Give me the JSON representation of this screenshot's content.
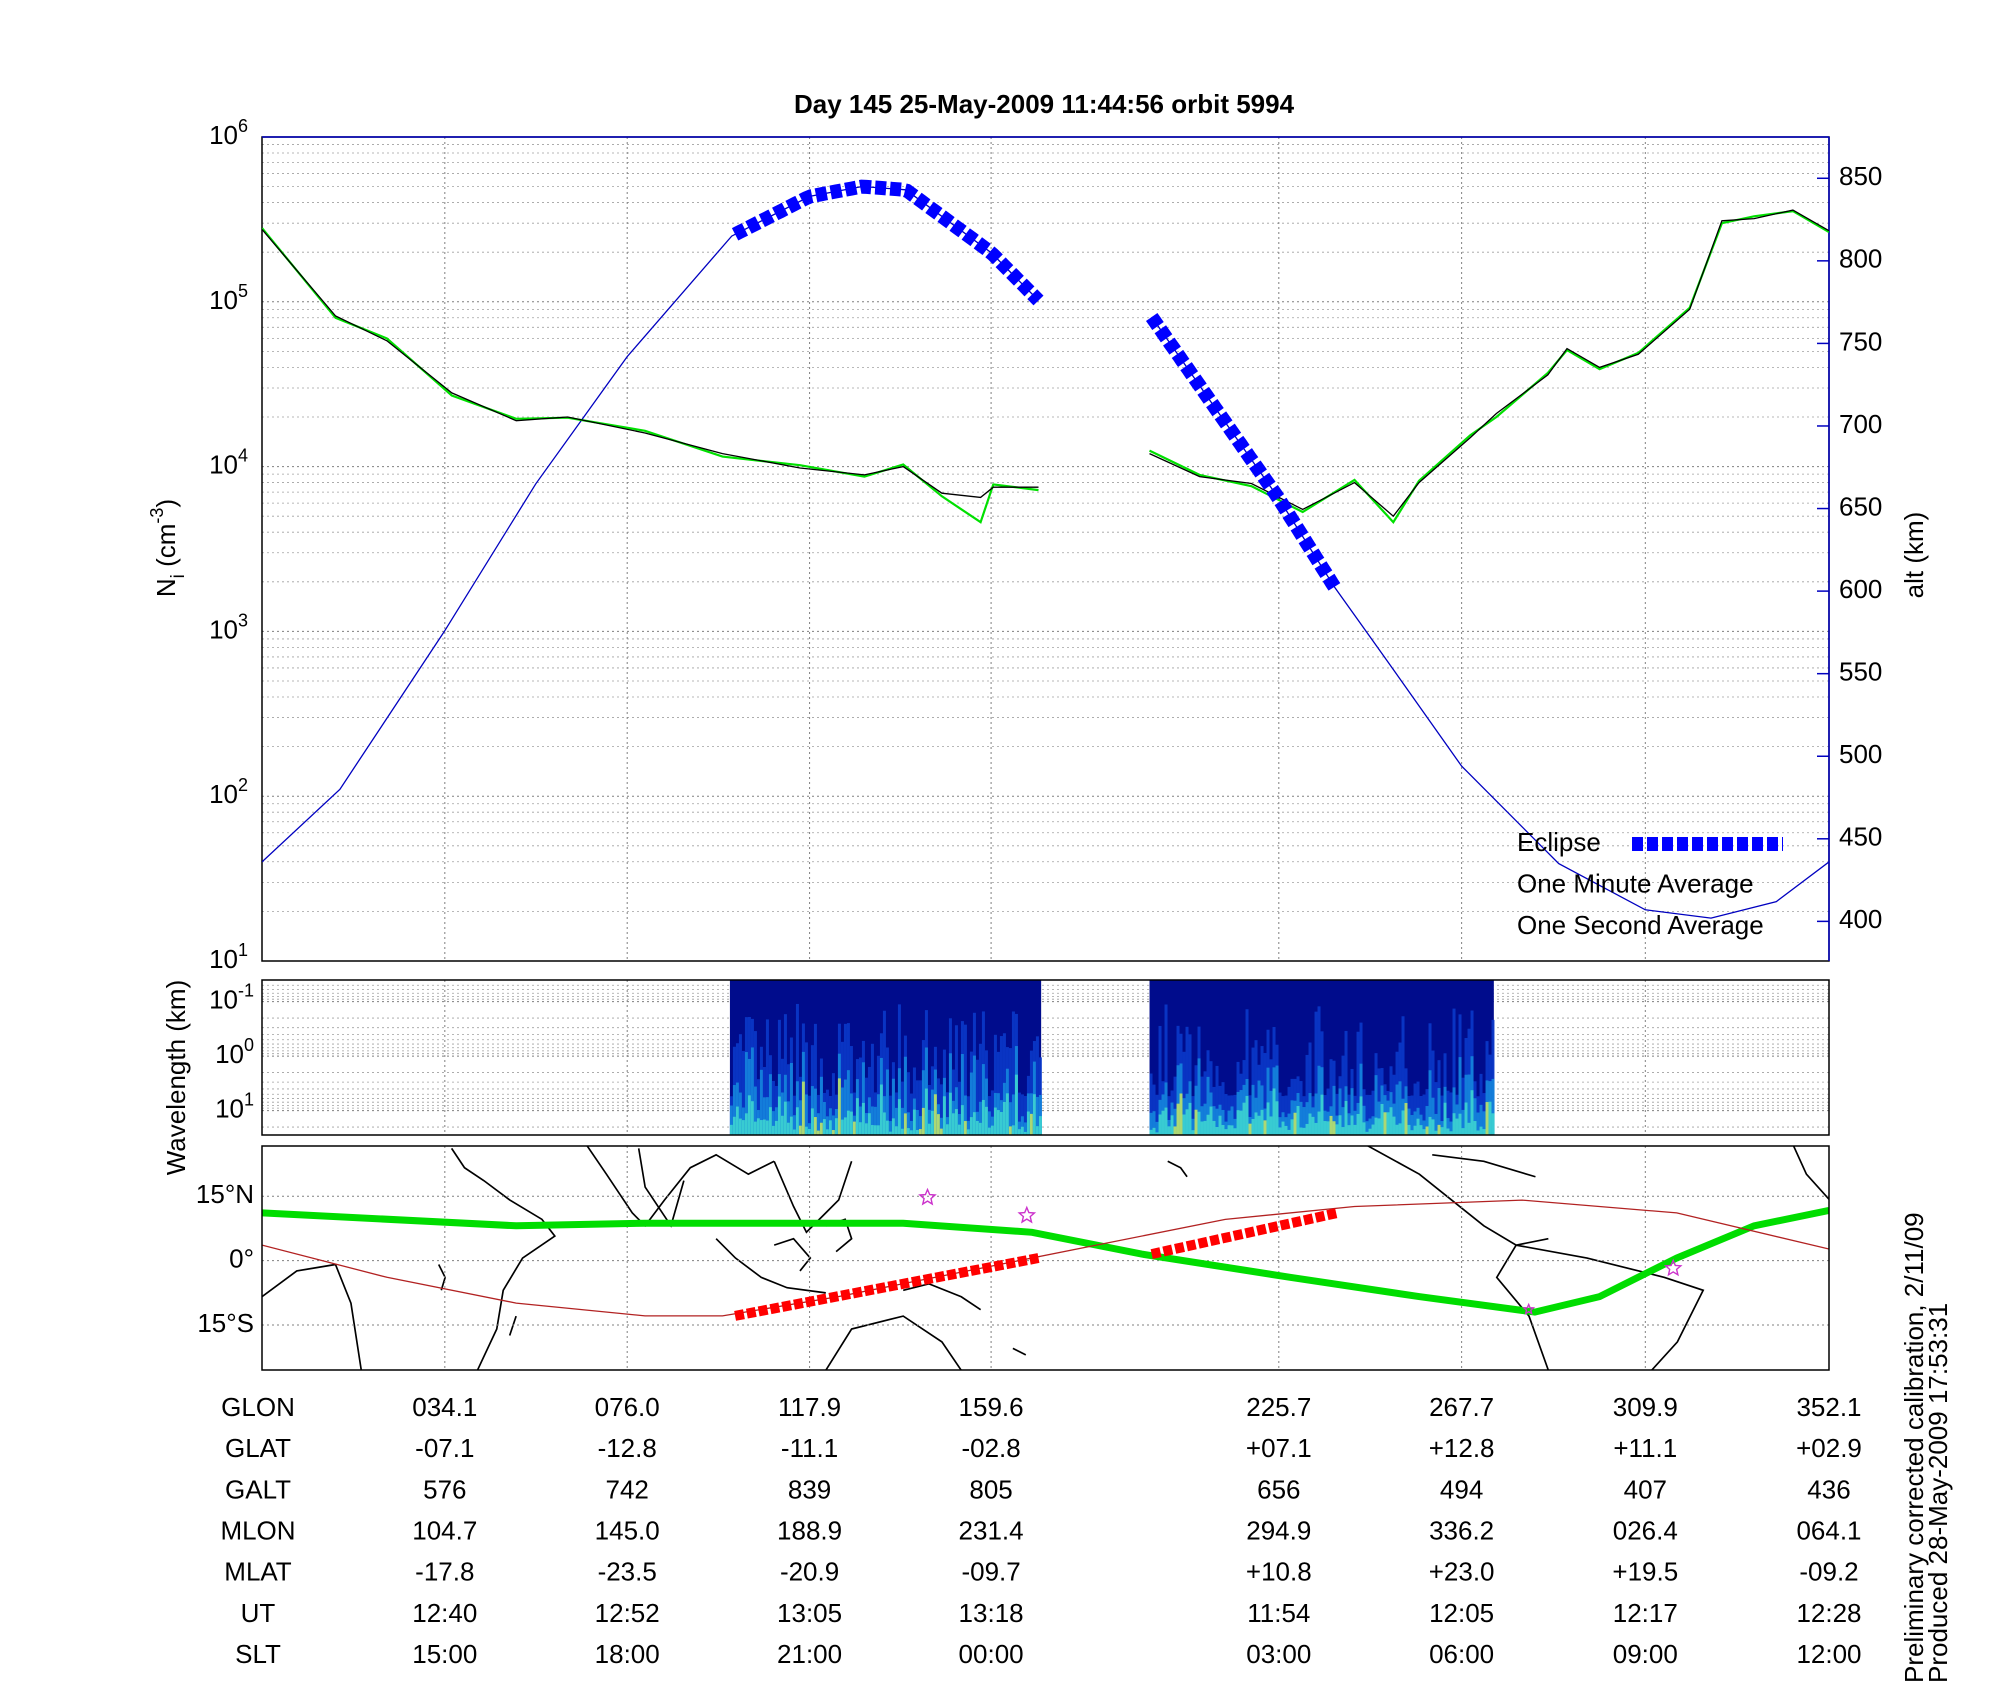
{
  "chart_data": [
    {
      "type": "line",
      "title": "Day 145  25-May-2009 11:44:56   orbit 5994",
      "ylabel": {
        "base": "N",
        "sub": "i",
        "unit": " (cm",
        "exponent": "-3",
        "close": ")"
      },
      "y2label": "alt (km)",
      "xlim": [
        -7.9,
        352.1
      ],
      "xticks": [
        34.1,
        76.0,
        117.9,
        159.6,
        225.7,
        267.7,
        309.9,
        352.1
      ],
      "ylim": [
        10,
        1000000
      ],
      "log": true,
      "yticks": [
        {
          "value": 10,
          "base": "10",
          "exponent": "1"
        },
        {
          "value": 100,
          "base": "10",
          "exponent": "2"
        },
        {
          "value": 1000,
          "base": "10",
          "exponent": "3"
        },
        {
          "value": 10000,
          "base": "10",
          "exponent": "4"
        },
        {
          "value": 100000,
          "base": "10",
          "exponent": "5"
        },
        {
          "value": 1000000,
          "base": "10",
          "exponent": "6"
        }
      ],
      "y2lim": [
        376,
        875
      ],
      "y2ticks": [
        400,
        450,
        500,
        550,
        600,
        650,
        700,
        750,
        800,
        850
      ],
      "grid": true,
      "legend": "lower right",
      "x": [
        -7.9,
        9.0,
        20.8,
        35.7,
        50.5,
        62.3,
        80.1,
        97.9,
        115.7,
        130.5,
        139.4,
        148.3,
        157.2,
        160.1,
        170.5,
        183,
        196.0,
        207.5,
        219.4,
        231.2,
        243.1,
        252.0,
        257.9,
        269.7,
        275.7,
        287.5,
        291.9,
        299.4,
        308.3,
        320.1,
        327.5,
        334.9,
        343.8,
        352.1
      ],
      "series": [
        {
          "name": "One Minute Average",
          "color": "#000000",
          "values": [
            275000,
            82000,
            58000,
            28000,
            19000,
            20000,
            16000,
            12000,
            9800,
            8900,
            10000,
            6900,
            6500,
            7500,
            7500,
            null,
            12000,
            8700,
            7900,
            5500,
            8000,
            5000,
            8000,
            15000,
            21000,
            36000,
            52000,
            40000,
            48000,
            90000,
            310000,
            320000,
            360000,
            270000
          ]
        },
        {
          "name": "One Second Average",
          "color": "#00e000",
          "values": [
            280000,
            80000,
            60000,
            27000,
            19500,
            19800,
            16500,
            11500,
            10200,
            8700,
            10300,
            6600,
            4600,
            7800,
            7200,
            null,
            12500,
            8900,
            7600,
            5300,
            8300,
            4600,
            8200,
            15500,
            20000,
            37000,
            51000,
            39000,
            49000,
            92000,
            300000,
            330000,
            355000,
            265000
          ]
        },
        {
          "color": "#0000c0",
          "axis": "y2",
          "x": [
            -7.9,
            10,
            34.1,
            55,
            76,
            100,
            117.9,
            130,
            140,
            159.6,
            170.5,
            183,
            196.5,
            210,
            225.7,
            238.6,
            250,
            267.7,
            290,
            309.9,
            325,
            340,
            352.1
          ],
          "values": [
            436,
            480,
            576,
            665,
            742,
            815,
            839,
            845,
            843,
            805,
            776,
            null,
            766,
            715,
            656,
            602,
            560,
            494,
            435,
            407,
            402,
            412,
            436
          ]
        }
      ],
      "eclipse": {
        "name": "Eclipse",
        "color": "#0000ff",
        "ranges": [
          [
            100.8,
            170.5
          ],
          [
            196.5,
            238.6
          ]
        ]
      }
    },
    {
      "type": "spectrogram",
      "ylabel": "Wavelength (km)",
      "xlim": [
        -7.9,
        352.1
      ],
      "xticks": [
        34.1,
        76.0,
        117.9,
        159.6,
        225.7,
        267.7,
        309.9,
        352.1
      ],
      "ylim": [
        0.04,
        28
      ],
      "log": true,
      "inverted": true,
      "yticks": [
        {
          "value": 0.1,
          "base": "10",
          "exponent": "-1"
        },
        {
          "value": 1,
          "base": "10",
          "exponent": "0"
        },
        {
          "value": 10,
          "base": "10",
          "exponent": "1"
        }
      ],
      "segments": [
        [
          99.6,
          171.1
        ],
        [
          196.0,
          275.1
        ]
      ]
    },
    {
      "type": "map",
      "xlim": [
        -7.9,
        352.1
      ],
      "xticks": [
        34.1,
        76.0,
        117.9,
        159.6,
        225.7,
        267.7,
        309.9,
        352.1
      ],
      "ylim": [
        -25.5,
        26.7
      ],
      "yticks": [
        {
          "value": -15,
          "label": "15°S"
        },
        {
          "value": 0,
          "label": "0°"
        },
        {
          "value": 15,
          "label": "15°N"
        }
      ],
      "series": [
        {
          "color": "#00dd00",
          "x": [
            -7.9,
            50.5,
            80.1,
            139.4,
            169.0,
            194.2,
            228.3,
            257.9,
            284.5,
            299.4,
            317.1,
            334.9,
            352.1
          ],
          "values": [
            11.1,
            8.1,
            8.7,
            8.7,
            6.6,
            1.5,
            -3.9,
            -8.4,
            -12,
            -8.4,
            0.6,
            8.1,
            11.7
          ]
        },
        {
          "color": "#b22222",
          "x": [
            -7.9,
            20.8,
            50.5,
            80.1,
            97.9,
            124.5,
            154.2,
            183.8,
            213.4,
            243.1,
            281.6,
            317.1,
            352.1
          ],
          "values": [
            3.6,
            -3.9,
            -9.9,
            -12.9,
            -12.9,
            -8.4,
            -2.4,
            3.6,
            9.6,
            12.6,
            14.1,
            11.1,
            2.7
          ]
        },
        {
          "color": "#ff0000",
          "x": [
            100.8,
            170.5,
            183,
            196.5,
            239.2
          ],
          "values": [
            -12.9,
            0.6,
            null,
            1.5,
            11.1
          ]
        }
      ],
      "stars": {
        "color": "#cc33cc",
        "x": [
          145.0,
          167.8,
          316.3,
          283.1
        ],
        "y": [
          14.7,
          10.5,
          -1.8,
          -11.4
        ]
      }
    }
  ],
  "table": {
    "rows": [
      {
        "label": "GLON",
        "values": [
          "034.1",
          "076.0",
          "117.9",
          "159.6",
          "225.7",
          "267.7",
          "309.9",
          "352.1"
        ]
      },
      {
        "label": "GLAT",
        "values": [
          "-07.1",
          "-12.8",
          "-11.1",
          "-02.8",
          "+07.1",
          "+12.8",
          "+11.1",
          "+02.9"
        ]
      },
      {
        "label": "GALT",
        "values": [
          "576",
          "742",
          "839",
          "805",
          "656",
          "494",
          "407",
          "436"
        ]
      },
      {
        "label": "MLON",
        "values": [
          "104.7",
          "145.0",
          "188.9",
          "231.4",
          "294.9",
          "336.2",
          "026.4",
          "064.1"
        ]
      },
      {
        "label": "MLAT",
        "values": [
          "-17.8",
          "-23.5",
          "-20.9",
          "-09.7",
          "+10.8",
          "+23.0",
          "+19.5",
          "-09.2"
        ]
      },
      {
        "label": "UT",
        "values": [
          "12:40",
          "12:52",
          "13:05",
          "13:18",
          "11:54",
          "12:05",
          "12:17",
          "12:28"
        ]
      },
      {
        "label": "SLT",
        "values": [
          "15:00",
          "18:00",
          "21:00",
          "00:00",
          "03:00",
          "06:00",
          "09:00",
          "12:00"
        ]
      }
    ]
  },
  "footnotes": [
    "Preliminary corrected calibration, 2/11/09",
    "Produced 28-May-2009 17:53:31"
  ]
}
